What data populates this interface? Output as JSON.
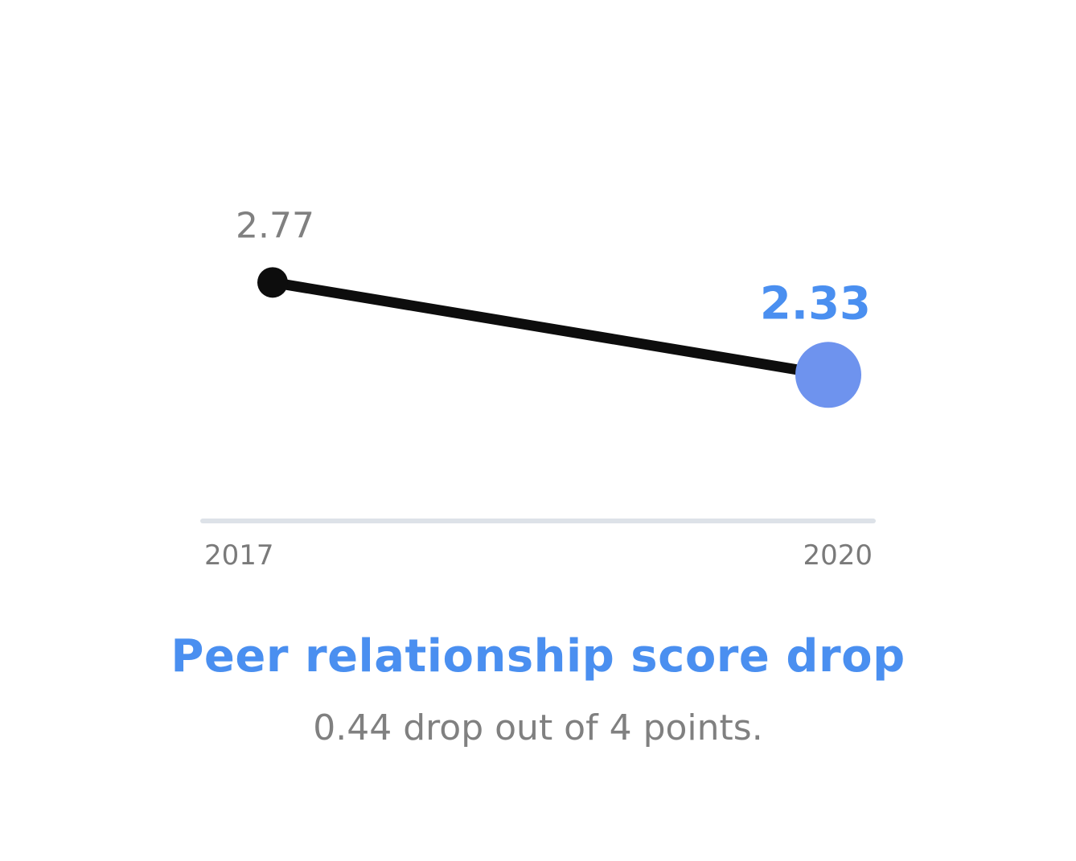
{
  "chart_data": {
    "type": "line",
    "categories": [
      "2017",
      "2020"
    ],
    "values": [
      2.77,
      2.33
    ],
    "value_labels": [
      "2.77",
      "2.33"
    ],
    "ylim": [
      0,
      4
    ],
    "grid": false,
    "title": "Peer relationship score drop",
    "subtitle": "0.44 drop out of 4 points."
  },
  "colors": {
    "line": "#0d0d0d",
    "start_point": "#0d0d0d",
    "end_point": "#6e93ee",
    "end_label": "#4a8ff0",
    "start_label": "#808080",
    "axis": "#dde2e8",
    "tick_label": "#7a7a7a",
    "title": "#4a8ff0",
    "subtitle": "#808080"
  }
}
